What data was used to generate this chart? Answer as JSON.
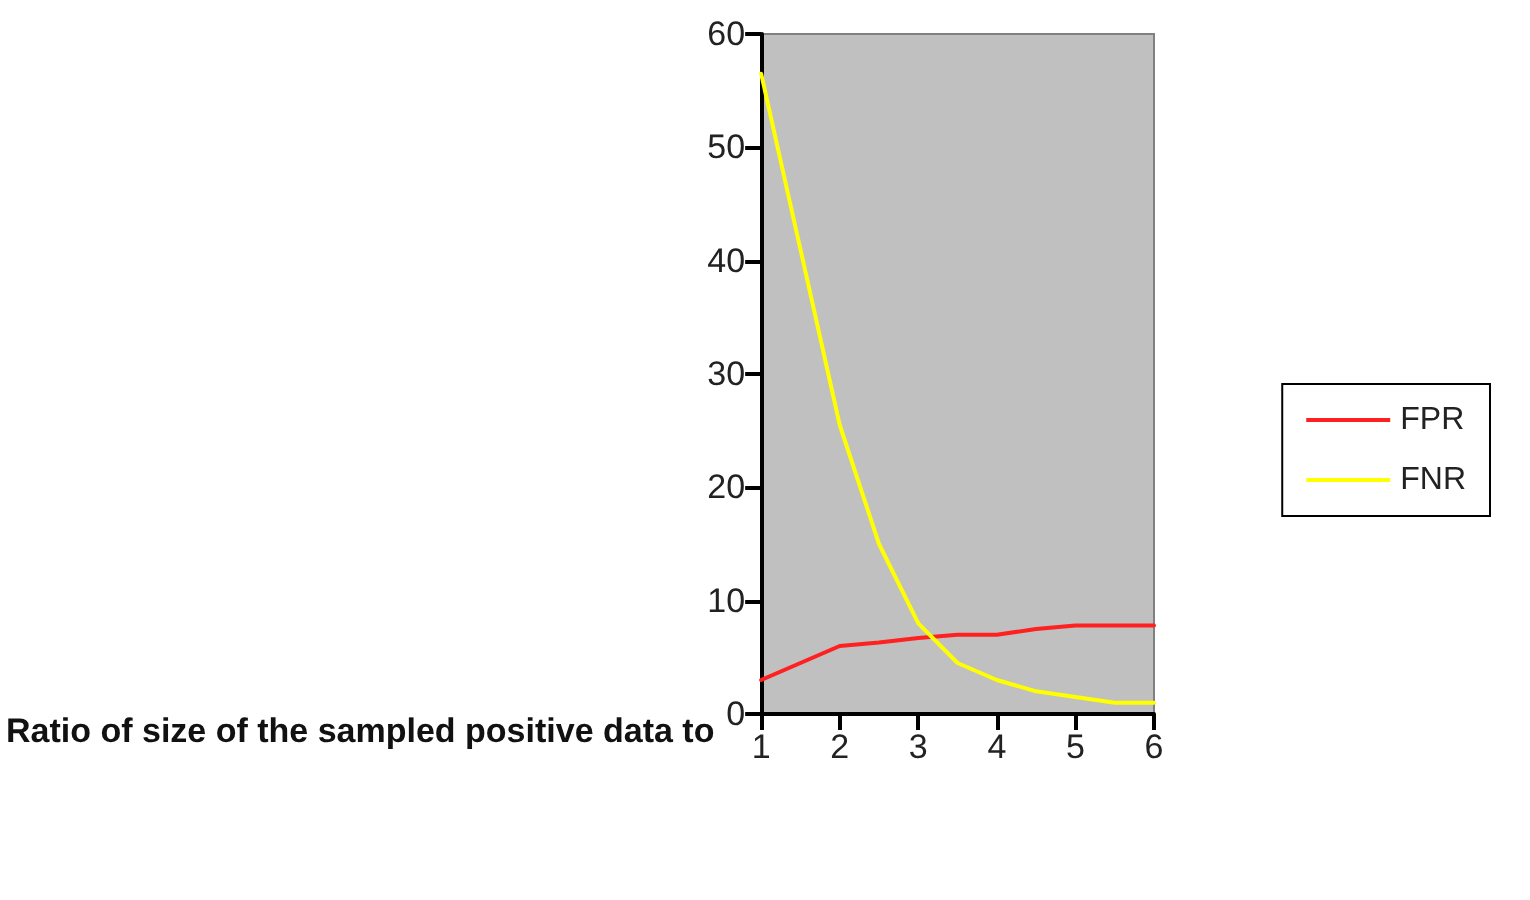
{
  "chart_data": {
    "type": "line",
    "xlabel": "Ratio of size of the sampled positive data to",
    "x": [
      1,
      1.5,
      2,
      2.5,
      3,
      3.5,
      4,
      4.5,
      5,
      5.5,
      6
    ],
    "series": [
      {
        "name": "FPR",
        "color": "#ff2020",
        "values": [
          3,
          4.5,
          6,
          6.3,
          6.7,
          7,
          7,
          7.5,
          7.8,
          7.8,
          7.8
        ]
      },
      {
        "name": "FNR",
        "color": "#ffff00",
        "values": [
          56.5,
          41,
          25.5,
          15,
          8,
          4.5,
          3,
          2,
          1.5,
          1,
          1
        ]
      }
    ],
    "xlim": [
      1,
      6
    ],
    "xticks": [
      1,
      2,
      3,
      4,
      5,
      6
    ],
    "ylim": [
      0,
      60
    ],
    "yticks": [
      0,
      10,
      20,
      30,
      40,
      50,
      60
    ],
    "grid": false,
    "legend": "right",
    "marker": "none",
    "line_style": "solid"
  }
}
